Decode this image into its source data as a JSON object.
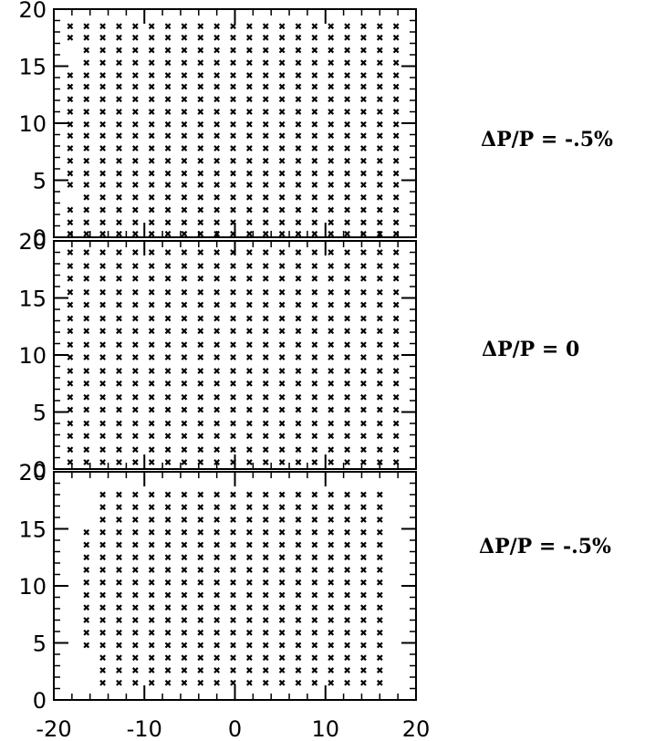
{
  "chart_data": {
    "type": "scatter",
    "marker": "x",
    "grid": false,
    "legend": "none",
    "xticks": [
      -20,
      -10,
      0,
      10,
      20
    ],
    "yticks": [
      0,
      5,
      10,
      15,
      20
    ],
    "panels": [
      {
        "annotation": "ΔP/P  =  -.5%",
        "xlim": [
          -20,
          20
        ],
        "ylim": [
          0,
          20
        ],
        "x": [
          -18.2,
          -16.4,
          -14.6,
          -12.8,
          -11,
          -9.2,
          -7.4,
          -5.6,
          -3.8,
          -2,
          -0.2,
          1.6,
          3.4,
          5.2,
          7,
          8.8,
          10.6,
          12.4,
          14.2,
          16,
          17.8
        ],
        "rows": [
          {
            "y": 0.3,
            "x_from": -18.2,
            "x_to": 17.8
          },
          {
            "y": 1.3,
            "x_from": -18.2,
            "x_to": 17.8
          },
          {
            "y": 2.4,
            "x_from": -18.2,
            "x_to": 17.8
          },
          {
            "y": 3.5,
            "x_from": -16.4,
            "x_to": 17.8
          },
          {
            "y": 4.6,
            "x_from": -18.2,
            "x_to": 17.8
          },
          {
            "y": 5.6,
            "x_from": -18.2,
            "x_to": 17.8
          },
          {
            "y": 6.7,
            "x_from": -18.2,
            "x_to": 17.8
          },
          {
            "y": 7.8,
            "x_from": -18.2,
            "x_to": 17.8
          },
          {
            "y": 8.9,
            "x_from": -18.2,
            "x_to": 17.8
          },
          {
            "y": 9.9,
            "x_from": -18.2,
            "x_to": 17.8
          },
          {
            "y": 11.0,
            "x_from": -18.2,
            "x_to": 17.8
          },
          {
            "y": 12.1,
            "x_from": -18.2,
            "x_to": 17.8
          },
          {
            "y": 13.2,
            "x_from": -18.2,
            "x_to": 17.8
          },
          {
            "y": 14.2,
            "x_from": -18.2,
            "x_to": 17.8
          },
          {
            "y": 15.3,
            "x_from": -16.4,
            "x_to": 17.8
          },
          {
            "y": 16.4,
            "x_from": -16.4,
            "x_to": 17.8
          },
          {
            "y": 17.5,
            "x_from": -18.2,
            "x_to": 17.8
          },
          {
            "y": 18.5,
            "x_from": -18.2,
            "x_to": 17.8
          }
        ]
      },
      {
        "annotation": "ΔP/P  =  0",
        "xlim": [
          -20,
          20
        ],
        "ylim": [
          0,
          20
        ],
        "x": [
          -18.2,
          -16.4,
          -14.6,
          -12.8,
          -11,
          -9.2,
          -7.4,
          -5.6,
          -3.8,
          -2,
          -0.2,
          1.6,
          3.4,
          5.2,
          7,
          8.8,
          10.6,
          12.4,
          14.2,
          16,
          17.8
        ],
        "rows": [
          {
            "y": 0.6,
            "x_from": -18.2,
            "x_to": 17.8
          },
          {
            "y": 1.7,
            "x_from": -18.2,
            "x_to": 17.8
          },
          {
            "y": 2.9,
            "x_from": -18.2,
            "x_to": 17.8
          },
          {
            "y": 4.0,
            "x_from": -18.2,
            "x_to": 17.8
          },
          {
            "y": 5.2,
            "x_from": -18.2,
            "x_to": 17.8
          },
          {
            "y": 6.3,
            "x_from": -18.2,
            "x_to": 17.8
          },
          {
            "y": 7.5,
            "x_from": -18.2,
            "x_to": 17.8
          },
          {
            "y": 8.6,
            "x_from": -18.2,
            "x_to": 17.8
          },
          {
            "y": 9.8,
            "x_from": -18.2,
            "x_to": 17.8
          },
          {
            "y": 10.9,
            "x_from": -18.2,
            "x_to": 17.8
          },
          {
            "y": 12.1,
            "x_from": -18.2,
            "x_to": 17.8
          },
          {
            "y": 13.2,
            "x_from": -18.2,
            "x_to": 17.8
          },
          {
            "y": 14.4,
            "x_from": -18.2,
            "x_to": 17.8
          },
          {
            "y": 15.5,
            "x_from": -18.2,
            "x_to": 17.8
          },
          {
            "y": 16.7,
            "x_from": -18.2,
            "x_to": 17.8
          },
          {
            "y": 17.8,
            "x_from": -18.2,
            "x_to": 17.8
          },
          {
            "y": 19.0,
            "x_from": -18.2,
            "x_to": 17.8
          }
        ]
      },
      {
        "annotation": "ΔP/P  =  -.5%",
        "xlim": [
          -20,
          20
        ],
        "ylim": [
          0,
          20
        ],
        "x": [
          -18.2,
          -16.4,
          -14.6,
          -12.8,
          -11,
          -9.2,
          -7.4,
          -5.6,
          -3.8,
          -2,
          -0.2,
          1.6,
          3.4,
          5.2,
          7,
          8.8,
          10.6,
          12.4,
          14.2,
          16,
          17.8
        ],
        "rows": [
          {
            "y": 1.5,
            "x_from": -14.6,
            "x_to": 16.0
          },
          {
            "y": 2.6,
            "x_from": -14.6,
            "x_to": 16.0
          },
          {
            "y": 3.7,
            "x_from": -14.6,
            "x_to": 16.0
          },
          {
            "y": 4.8,
            "x_from": -16.4,
            "x_to": 16.0
          },
          {
            "y": 5.9,
            "x_from": -16.4,
            "x_to": 16.0
          },
          {
            "y": 7.0,
            "x_from": -16.4,
            "x_to": 16.0
          },
          {
            "y": 8.1,
            "x_from": -16.4,
            "x_to": 16.0
          },
          {
            "y": 9.2,
            "x_from": -16.4,
            "x_to": 16.0
          },
          {
            "y": 10.3,
            "x_from": -16.4,
            "x_to": 16.0
          },
          {
            "y": 11.4,
            "x_from": -16.4,
            "x_to": 16.0
          },
          {
            "y": 12.5,
            "x_from": -16.4,
            "x_to": 16.0
          },
          {
            "y": 13.6,
            "x_from": -16.4,
            "x_to": 16.0
          },
          {
            "y": 14.7,
            "x_from": -16.4,
            "x_to": 16.0
          },
          {
            "y": 15.8,
            "x_from": -14.6,
            "x_to": 16.0
          },
          {
            "y": 16.9,
            "x_from": -14.6,
            "x_to": 16.0
          },
          {
            "y": 18.0,
            "x_from": -14.6,
            "x_to": 16.0
          }
        ]
      }
    ]
  }
}
